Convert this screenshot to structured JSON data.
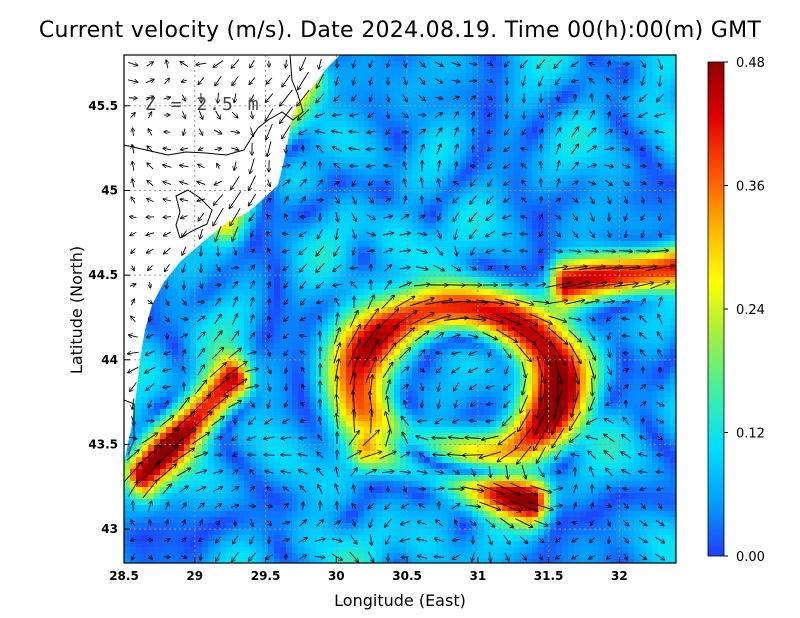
{
  "chart_data": {
    "type": "heatmap",
    "title": "Current velocity (m/s). Date 2024.08.19. Time 00(h):00(m) GMT",
    "xlabel": "Longitude (East)",
    "ylabel": "Latitude (North)",
    "annotation": "Z = 2.5 m",
    "xlim": [
      28.5,
      32.4
    ],
    "ylim": [
      42.8,
      45.8
    ],
    "x_ticks": [
      "28.5",
      "29",
      "29.5",
      "30",
      "30.5",
      "31",
      "31.5",
      "32"
    ],
    "y_ticks": [
      "43",
      "43.5",
      "44",
      "44.5",
      "45",
      "45.5"
    ],
    "grid": true,
    "colorbar": {
      "min": 0.0,
      "max": 0.48,
      "ticks": [
        "0.00",
        "0.12",
        "0.24",
        "0.36",
        "0.48"
      ],
      "colors": [
        "#1f3cff",
        "#00a0ff",
        "#00e0ff",
        "#40f0a0",
        "#a0f040",
        "#ffff00",
        "#ffb000",
        "#ff5000",
        "#e00000",
        "#900000"
      ]
    },
    "features": [
      {
        "name": "anticyclonic eddy",
        "center": [
          30.85,
          43.85
        ],
        "radii": [
          0.7,
          0.45
        ],
        "speed": 0.42
      },
      {
        "name": "southern jet",
        "from": [
          30.2,
          43.5
        ],
        "to": [
          31.4,
          43.15
        ],
        "speed": 0.46
      },
      {
        "name": "western jet",
        "from": [
          28.6,
          43.3
        ],
        "to": [
          29.3,
          43.9
        ],
        "speed": 0.43
      },
      {
        "name": "northeast jet",
        "from": [
          31.6,
          44.45
        ],
        "to": [
          32.4,
          44.55
        ],
        "speed": 0.45
      },
      {
        "name": "coastal current",
        "from": [
          29.8,
          45.7
        ],
        "to": [
          29.2,
          44.8
        ],
        "speed": 0.26
      }
    ]
  }
}
